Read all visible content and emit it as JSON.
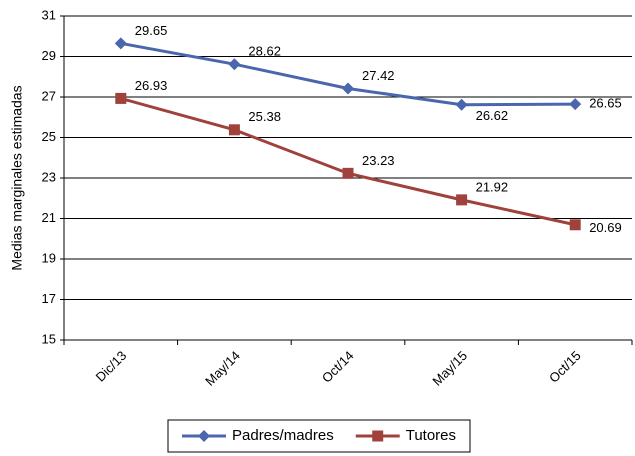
{
  "chart_data": {
    "type": "line",
    "y_label": "Medias marginales estimadas",
    "categories": [
      "Dic/13",
      "May/14",
      "Oct/14",
      "May/15",
      "Oct/15"
    ],
    "series": [
      {
        "name": "Padres/madres",
        "color": "#4a66ac",
        "marker": "diamond",
        "values": [
          29.65,
          28.62,
          27.42,
          26.62,
          26.65
        ]
      },
      {
        "name": "Tutores",
        "color": "#a0413b",
        "marker": "square",
        "values": [
          26.93,
          25.38,
          23.23,
          21.92,
          20.69
        ]
      }
    ],
    "ylim": [
      15,
      31
    ],
    "yticks": [
      15,
      17,
      19,
      21,
      23,
      25,
      27,
      29,
      31
    ],
    "grid": true,
    "legend": "bottom"
  }
}
